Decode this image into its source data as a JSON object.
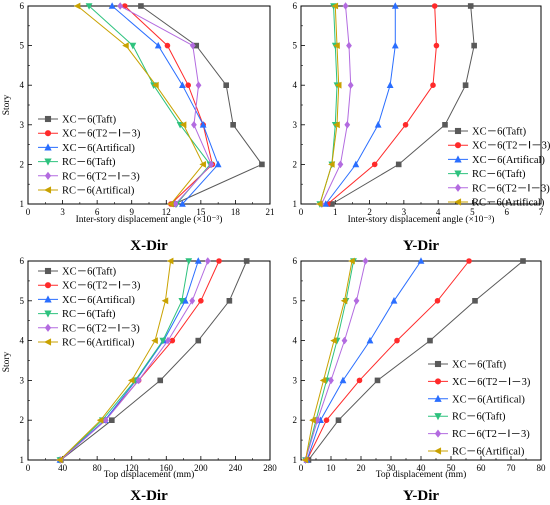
{
  "chart_data": [
    {
      "type": "line",
      "caption": "X-Dir",
      "xlabel": "Inter-story displacement angle (×10⁻³)",
      "ylabel": "Story",
      "xlim": [
        0,
        21
      ],
      "ylim": [
        1,
        6
      ],
      "xticks": [
        0,
        3,
        6,
        9,
        12,
        15,
        18,
        21
      ],
      "xtick_labels": [
        "0",
        "3",
        "6",
        "9",
        "12",
        "15",
        "18",
        "21"
      ],
      "yticks": [
        1,
        2,
        3,
        4,
        5,
        6
      ],
      "ytick_labels": [
        "1",
        "2",
        "3",
        "4",
        "5",
        "6"
      ],
      "legend_position": "bottom-left",
      "series": [
        {
          "name": "XC－6(Taft)",
          "color": "#595959",
          "marker": "square",
          "x": [
            12.7,
            20.3,
            17.8,
            17.2,
            14.6,
            9.8
          ],
          "y": [
            1,
            2,
            3,
            4,
            5,
            6
          ]
        },
        {
          "name": "XC－6(T2－Ⅰ－3)",
          "color": "#ff2a2a",
          "marker": "circle",
          "x": [
            12.4,
            16.0,
            15.2,
            13.9,
            12.1,
            8.4
          ],
          "y": [
            1,
            2,
            3,
            4,
            5,
            6
          ]
        },
        {
          "name": "XC－6(Artifical)",
          "color": "#2a6eff",
          "marker": "triangle-up",
          "x": [
            13.4,
            16.5,
            15.2,
            13.4,
            11.3,
            7.3
          ],
          "y": [
            1,
            2,
            3,
            4,
            5,
            6
          ]
        },
        {
          "name": "RC－6(Taft)",
          "color": "#2ec27e",
          "marker": "triangle-down",
          "x": [
            12.9,
            15.8,
            13.2,
            10.9,
            9.1,
            5.3
          ],
          "y": [
            1,
            2,
            3,
            4,
            5,
            6
          ]
        },
        {
          "name": "RC－6(T2－Ⅰ－3)",
          "color": "#b36be0",
          "marker": "diamond",
          "x": [
            12.8,
            15.9,
            14.4,
            14.8,
            14.3,
            8.0
          ],
          "y": [
            1,
            2,
            3,
            4,
            5,
            6
          ]
        },
        {
          "name": "RC－6(Artifical)",
          "color": "#c9a200",
          "marker": "triangle-left",
          "x": [
            12.4,
            15.2,
            13.5,
            11.1,
            8.5,
            4.3
          ],
          "y": [
            1,
            2,
            3,
            4,
            5,
            6
          ]
        }
      ]
    },
    {
      "type": "line",
      "caption": "Y-Dir",
      "xlabel": "Inter-story displacement angle (×10⁻³)",
      "ylabel": "",
      "xlim": [
        0,
        7
      ],
      "ylim": [
        1,
        6
      ],
      "xticks": [
        0,
        1,
        2,
        3,
        4,
        5,
        6,
        7
      ],
      "xtick_labels": [
        "0",
        "1",
        "2",
        "3",
        "4",
        "5",
        "6",
        "7"
      ],
      "yticks": [
        1,
        2,
        3,
        4,
        5,
        6
      ],
      "ytick_labels": [
        "1",
        "2",
        "3",
        "4",
        "5",
        "6"
      ],
      "legend_position": "bottom-right",
      "series": [
        {
          "name": "XC－6(Taft)",
          "color": "#595959",
          "marker": "square",
          "x": [
            0.9,
            2.85,
            4.2,
            4.8,
            5.05,
            4.95
          ],
          "y": [
            1,
            2,
            3,
            4,
            5,
            6
          ]
        },
        {
          "name": "XC－6(T2－Ⅰ－3)",
          "color": "#ff2a2a",
          "marker": "circle",
          "x": [
            0.78,
            2.15,
            3.05,
            3.85,
            3.95,
            3.9
          ],
          "y": [
            1,
            2,
            3,
            4,
            5,
            6
          ]
        },
        {
          "name": "XC－6(Artifical)",
          "color": "#2a6eff",
          "marker": "triangle-up",
          "x": [
            0.72,
            1.6,
            2.25,
            2.6,
            2.75,
            2.75
          ],
          "y": [
            1,
            2,
            3,
            4,
            5,
            6
          ]
        },
        {
          "name": "RC－6(Taft)",
          "color": "#2ec27e",
          "marker": "triangle-down",
          "x": [
            0.55,
            0.9,
            1.0,
            1.05,
            1.0,
            0.95
          ],
          "y": [
            1,
            2,
            3,
            4,
            5,
            6
          ]
        },
        {
          "name": "RC－6(T2－Ⅰ－3)",
          "color": "#b36be0",
          "marker": "diamond",
          "x": [
            0.6,
            1.15,
            1.35,
            1.45,
            1.4,
            1.3
          ],
          "y": [
            1,
            2,
            3,
            4,
            5,
            6
          ]
        },
        {
          "name": "RC－6(Artifical)",
          "color": "#c9a200",
          "marker": "triangle-left",
          "x": [
            0.55,
            0.9,
            1.05,
            1.1,
            1.05,
            1.0
          ],
          "y": [
            1,
            2,
            3,
            4,
            5,
            6
          ]
        }
      ]
    },
    {
      "type": "line",
      "caption": "X-Dir",
      "xlabel": "Top displacement (mm)",
      "ylabel": "Story",
      "xlim": [
        0,
        280
      ],
      "ylim": [
        1,
        6
      ],
      "xticks": [
        0,
        40,
        80,
        120,
        160,
        200,
        240,
        280
      ],
      "xtick_labels": [
        "0",
        "40",
        "80",
        "120",
        "160",
        "200",
        "240",
        "280"
      ],
      "yticks": [
        1,
        2,
        3,
        4,
        5,
        6
      ],
      "ytick_labels": [
        "1",
        "2",
        "3",
        "4",
        "5",
        "6"
      ],
      "legend_position": "top-left",
      "series": [
        {
          "name": "XC－6(Taft)",
          "color": "#595959",
          "marker": "square",
          "x": [
            38,
            97,
            153,
            197,
            233,
            253
          ],
          "y": [
            1,
            2,
            3,
            4,
            5,
            6
          ]
        },
        {
          "name": "XC－6(T2－Ⅰ－3)",
          "color": "#ff2a2a",
          "marker": "circle",
          "x": [
            37,
            89,
            128,
            167,
            200,
            221
          ],
          "y": [
            1,
            2,
            3,
            4,
            5,
            6
          ]
        },
        {
          "name": "XC－6(Artifical)",
          "color": "#2a6eff",
          "marker": "triangle-up",
          "x": [
            37,
            89,
            125,
            157,
            182,
            197
          ],
          "y": [
            1,
            2,
            3,
            4,
            5,
            6
          ]
        },
        {
          "name": "RC－6(Taft)",
          "color": "#2ec27e",
          "marker": "triangle-down",
          "x": [
            37,
            86,
            124,
            156,
            178,
            186
          ],
          "y": [
            1,
            2,
            3,
            4,
            5,
            6
          ]
        },
        {
          "name": "RC－6(T2－Ⅰ－3)",
          "color": "#b36be0",
          "marker": "diamond",
          "x": [
            38,
            90,
            128,
            162,
            190,
            208
          ],
          "y": [
            1,
            2,
            3,
            4,
            5,
            6
          ]
        },
        {
          "name": "RC－6(Artifical)",
          "color": "#c9a200",
          "marker": "triangle-left",
          "x": [
            37,
            84,
            120,
            147,
            159,
            165
          ],
          "y": [
            1,
            2,
            3,
            4,
            5,
            6
          ]
        }
      ]
    },
    {
      "type": "line",
      "caption": "Y-Dir",
      "xlabel": "Top displacement (mm)",
      "ylabel": "",
      "xlim": [
        0,
        80
      ],
      "ylim": [
        1,
        6
      ],
      "xticks": [
        0,
        10,
        20,
        30,
        40,
        50,
        60,
        70,
        80
      ],
      "xtick_labels": [
        "0",
        "10",
        "20",
        "30",
        "40",
        "50",
        "60",
        "70",
        "80"
      ],
      "yticks": [
        1,
        2,
        3,
        4,
        5,
        6
      ],
      "ytick_labels": [
        "1",
        "2",
        "3",
        "4",
        "5",
        "6"
      ],
      "legend_position": "bottom-right",
      "series": [
        {
          "name": "XC－6(Taft)",
          "color": "#595959",
          "marker": "square",
          "x": [
            2.5,
            12.5,
            25.5,
            43,
            58,
            74
          ],
          "y": [
            1,
            2,
            3,
            4,
            5,
            6
          ]
        },
        {
          "name": "XC－6(T2－Ⅰ－3)",
          "color": "#ff2a2a",
          "marker": "circle",
          "x": [
            2,
            8.5,
            19.5,
            32,
            45.5,
            56
          ],
          "y": [
            1,
            2,
            3,
            4,
            5,
            6
          ]
        },
        {
          "name": "XC－6(Artifical)",
          "color": "#2a6eff",
          "marker": "triangle-up",
          "x": [
            2,
            6.5,
            14,
            23,
            31,
            40
          ],
          "y": [
            1,
            2,
            3,
            4,
            5,
            6
          ]
        },
        {
          "name": "RC－6(Taft)",
          "color": "#2ec27e",
          "marker": "triangle-down",
          "x": [
            1.5,
            5,
            8.5,
            12,
            15,
            17.5
          ],
          "y": [
            1,
            2,
            3,
            4,
            5,
            6
          ]
        },
        {
          "name": "RC－6(T2－Ⅰ－3)",
          "color": "#b36be0",
          "marker": "diamond",
          "x": [
            1.5,
            5.5,
            10,
            14.5,
            18.5,
            21.5
          ],
          "y": [
            1,
            2,
            3,
            4,
            5,
            6
          ]
        },
        {
          "name": "RC－6(Artifical)",
          "color": "#c9a200",
          "marker": "triangle-left",
          "x": [
            1.5,
            4,
            7.5,
            11,
            14.5,
            17
          ],
          "y": [
            1,
            2,
            3,
            4,
            5,
            6
          ]
        }
      ]
    }
  ]
}
